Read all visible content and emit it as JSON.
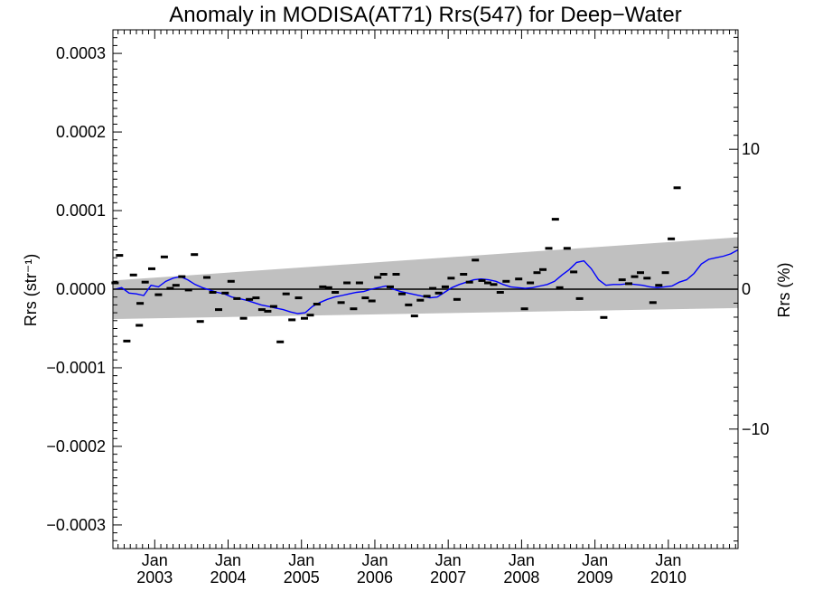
{
  "chart_data": {
    "type": "scatter",
    "title": "Anomaly in MODISA(AT71) Rrs(547) for Deep−Water",
    "ylabel_left": "Rrs (str⁻¹)",
    "ylabel_right": "Rrs (%)",
    "xlabel": "",
    "ylim": [
      -0.00033,
      0.00033
    ],
    "xlim": [
      2002.43,
      2010.95
    ],
    "yticks_left": [
      {
        "value": 0.0003,
        "label": "0.0003"
      },
      {
        "value": 0.0002,
        "label": "0.0002"
      },
      {
        "value": 0.0001,
        "label": "0.0001"
      },
      {
        "value": 0.0,
        "label": "0.0000"
      },
      {
        "value": -0.0001,
        "label": "−0.0001"
      },
      {
        "value": -0.0002,
        "label": "−0.0002"
      },
      {
        "value": -0.0003,
        "label": "−0.0003"
      }
    ],
    "yticks_right": [
      {
        "value": 10,
        "label": "10"
      },
      {
        "value": 0,
        "label": "0"
      },
      {
        "value": -10,
        "label": "−10"
      }
    ],
    "right_axis_scale": 1.78e-05,
    "xticks": [
      {
        "value": 2003.0,
        "month": "Jan",
        "year": "2003"
      },
      {
        "value": 2004.0,
        "month": "Jan",
        "year": "2004"
      },
      {
        "value": 2005.0,
        "month": "Jan",
        "year": "2005"
      },
      {
        "value": 2006.0,
        "month": "Jan",
        "year": "2006"
      },
      {
        "value": 2007.0,
        "month": "Jan",
        "year": "2007"
      },
      {
        "value": 2008.0,
        "month": "Jan",
        "year": "2008"
      },
      {
        "value": 2009.0,
        "month": "Jan",
        "year": "2009"
      },
      {
        "value": 2010.0,
        "month": "Jan",
        "year": "2010"
      }
    ],
    "uncertainty_band": {
      "x": [
        2002.43,
        2010.95
      ],
      "upper": [
        1.1e-05,
        6.6e-05
      ],
      "lower": [
        -3.8e-05,
        -2.4e-05
      ],
      "color": "#c0c0c0"
    },
    "zero_line": {
      "value": 0.0,
      "color": "#000000"
    },
    "series": [
      {
        "kind": "points",
        "color": "#000000",
        "points": [
          [
            2002.46,
            8e-06
          ],
          [
            2002.52,
            4.3e-05
          ],
          [
            2002.62,
            -6.6e-05
          ],
          [
            2002.71,
            1.8e-05
          ],
          [
            2002.79,
            -4.6e-05
          ],
          [
            2002.8,
            -1.8e-05
          ],
          [
            2002.87,
            9e-06
          ],
          [
            2002.96,
            2.6e-05
          ],
          [
            2003.05,
            -7e-06
          ],
          [
            2003.13,
            4.1e-05
          ],
          [
            2003.21,
            1e-06
          ],
          [
            2003.29,
            5e-06
          ],
          [
            2003.37,
            1.6e-05
          ],
          [
            2003.46,
            -1e-06
          ],
          [
            2003.54,
            4.4e-05
          ],
          [
            2003.62,
            -4.1e-05
          ],
          [
            2003.71,
            1.5e-05
          ],
          [
            2003.79,
            -4e-06
          ],
          [
            2003.87,
            -2.6e-05
          ],
          [
            2003.96,
            -5e-06
          ],
          [
            2004.04,
            1e-05
          ],
          [
            2004.12,
            -1.2e-05
          ],
          [
            2004.21,
            -3.7e-05
          ],
          [
            2004.29,
            -1.3e-05
          ],
          [
            2004.38,
            -1.1e-05
          ],
          [
            2004.46,
            -2.6e-05
          ],
          [
            2004.54,
            -2.8e-05
          ],
          [
            2004.62,
            -2.2e-05
          ],
          [
            2004.71,
            -6.7e-05
          ],
          [
            2004.79,
            -6e-06
          ],
          [
            2004.87,
            -3.9e-05
          ],
          [
            2004.96,
            -1.1e-05
          ],
          [
            2005.04,
            -3.7e-05
          ],
          [
            2005.12,
            -3.3e-05
          ],
          [
            2005.21,
            -1.9e-05
          ],
          [
            2005.29,
            3e-06
          ],
          [
            2005.37,
            2e-06
          ],
          [
            2005.46,
            -4e-06
          ],
          [
            2005.54,
            -1.7e-05
          ],
          [
            2005.62,
            8e-06
          ],
          [
            2005.71,
            -2.5e-05
          ],
          [
            2005.79,
            8e-06
          ],
          [
            2005.87,
            -1.1e-05
          ],
          [
            2005.96,
            -1.5e-05
          ],
          [
            2006.04,
            1.5e-05
          ],
          [
            2006.12,
            1.9e-05
          ],
          [
            2006.21,
            3e-06
          ],
          [
            2006.29,
            1.9e-05
          ],
          [
            2006.37,
            -6e-06
          ],
          [
            2006.46,
            -2e-05
          ],
          [
            2006.54,
            -3.4e-05
          ],
          [
            2006.62,
            -1.4e-05
          ],
          [
            2006.71,
            -9e-06
          ],
          [
            2006.79,
            1e-06
          ],
          [
            2006.87,
            -5e-06
          ],
          [
            2006.96,
            3e-06
          ],
          [
            2007.04,
            1.4e-05
          ],
          [
            2007.12,
            -1.3e-05
          ],
          [
            2007.21,
            1.9e-05
          ],
          [
            2007.29,
            9e-06
          ],
          [
            2007.37,
            3.7e-05
          ],
          [
            2007.46,
            1.1e-05
          ],
          [
            2007.54,
            8e-06
          ],
          [
            2007.62,
            6e-06
          ],
          [
            2007.71,
            -4e-06
          ],
          [
            2007.79,
            1e-05
          ],
          [
            2007.96,
            1.3e-05
          ],
          [
            2008.04,
            -2.5e-05
          ],
          [
            2008.12,
            8e-06
          ],
          [
            2008.21,
            2.1e-05
          ],
          [
            2008.29,
            2.5e-05
          ],
          [
            2008.37,
            5.2e-05
          ],
          [
            2008.46,
            8.9e-05
          ],
          [
            2008.52,
            2e-06
          ],
          [
            2008.62,
            5.2e-05
          ],
          [
            2008.71,
            2.2e-05
          ],
          [
            2008.79,
            -1.2e-05
          ],
          [
            2009.12,
            -3.6e-05
          ],
          [
            2009.37,
            1.2e-05
          ],
          [
            2009.46,
            7e-06
          ],
          [
            2009.54,
            1.6e-05
          ],
          [
            2009.62,
            2.1e-05
          ],
          [
            2009.71,
            1.4e-05
          ],
          [
            2009.79,
            -1.7e-05
          ],
          [
            2009.87,
            5e-06
          ],
          [
            2009.96,
            2.1e-05
          ],
          [
            2010.04,
            6.4e-05
          ],
          [
            2010.12,
            0.000129
          ]
        ]
      },
      {
        "kind": "line",
        "color": "#0000ff",
        "x": [
          2002.46,
          2002.55,
          2002.65,
          2002.75,
          2002.85,
          2002.95,
          2003.05,
          2003.15,
          2003.25,
          2003.35,
          2003.45,
          2003.55,
          2003.65,
          2003.75,
          2003.85,
          2003.95,
          2004.05,
          2004.15,
          2004.25,
          2004.35,
          2004.45,
          2004.55,
          2004.65,
          2004.75,
          2004.85,
          2004.95,
          2005.05,
          2005.15,
          2005.25,
          2005.35,
          2005.45,
          2005.55,
          2005.65,
          2005.75,
          2005.85,
          2005.95,
          2006.05,
          2006.15,
          2006.25,
          2006.35,
          2006.45,
          2006.55,
          2006.65,
          2006.75,
          2006.85,
          2006.95,
          2007.05,
          2007.15,
          2007.25,
          2007.35,
          2007.45,
          2007.55,
          2007.65,
          2007.75,
          2007.85,
          2007.95,
          2008.05,
          2008.15,
          2008.25,
          2008.35,
          2008.45,
          2008.55,
          2008.65,
          2008.75,
          2008.85,
          2008.95,
          2009.05,
          2009.15,
          2009.25,
          2009.35,
          2009.45,
          2009.55,
          2009.65,
          2009.75,
          2009.85,
          2009.95,
          2010.05,
          2010.15,
          2010.25,
          2010.35,
          2010.45,
          2010.55,
          2010.65,
          2010.75,
          2010.85,
          2010.95
        ],
        "y": [
          0.0,
          2e-06,
          -5e-06,
          -6e-06,
          -8e-06,
          5e-06,
          3e-06,
          1e-05,
          1.4e-05,
          1.6e-05,
          1.2e-05,
          6e-06,
          2e-06,
          -1e-06,
          -4e-06,
          -6e-06,
          -1e-05,
          -1.2e-05,
          -1.4e-05,
          -1.7e-05,
          -2e-05,
          -2.2e-05,
          -2.4e-05,
          -2.6e-05,
          -2.9e-05,
          -3.1e-05,
          -3e-05,
          -2.2e-05,
          -1.7e-05,
          -1.3e-05,
          -1e-05,
          -8e-06,
          -6e-06,
          -4e-06,
          -3e-06,
          0.0,
          2e-06,
          4e-06,
          0.0,
          -3e-06,
          -5e-06,
          -7e-06,
          -9e-06,
          -1.1e-05,
          -1e-05,
          -4e-06,
          2e-06,
          6e-06,
          9e-06,
          1.2e-05,
          1.3e-05,
          1.2e-05,
          1e-05,
          6e-06,
          3e-06,
          2e-06,
          1e-06,
          2e-06,
          4e-06,
          6e-06,
          1e-05,
          1.8e-05,
          2.5e-05,
          3.4e-05,
          3.6e-05,
          2.6e-05,
          1.2e-05,
          5e-06,
          6e-06,
          6e-06,
          7e-06,
          6e-06,
          5e-06,
          3e-06,
          2e-06,
          3e-06,
          4e-06,
          9e-06,
          1.2e-05,
          2e-05,
          3.2e-05,
          3.8e-05,
          4e-05,
          4.2e-05,
          4.5e-05,
          5e-05
        ]
      }
    ]
  }
}
